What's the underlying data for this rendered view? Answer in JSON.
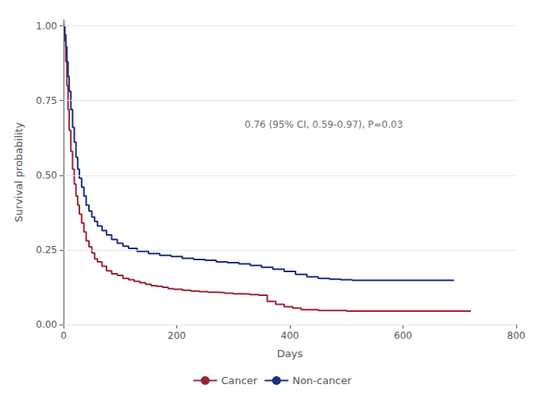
{
  "chart_data": {
    "type": "step",
    "xlabel": "Days",
    "ylabel": "Survival probability",
    "series": [
      {
        "name": "Cancer",
        "color": "#9b2335",
        "x": [
          0,
          2,
          4,
          6,
          8,
          10,
          13,
          16,
          19,
          22,
          25,
          28,
          32,
          36,
          40,
          45,
          50,
          55,
          60,
          68,
          76,
          85,
          95,
          105,
          115,
          125,
          135,
          145,
          155,
          165,
          175,
          185,
          195,
          210,
          225,
          240,
          255,
          270,
          285,
          300,
          315,
          330,
          345,
          360,
          375,
          390,
          405,
          420,
          450,
          500,
          550,
          600,
          660,
          720
        ],
        "values": [
          1.0,
          0.95,
          0.88,
          0.8,
          0.72,
          0.65,
          0.58,
          0.52,
          0.47,
          0.43,
          0.4,
          0.37,
          0.34,
          0.31,
          0.28,
          0.26,
          0.24,
          0.22,
          0.21,
          0.195,
          0.18,
          0.17,
          0.165,
          0.155,
          0.15,
          0.145,
          0.14,
          0.135,
          0.13,
          0.128,
          0.125,
          0.12,
          0.118,
          0.115,
          0.112,
          0.11,
          0.108,
          0.107,
          0.105,
          0.103,
          0.102,
          0.1,
          0.098,
          0.078,
          0.068,
          0.06,
          0.055,
          0.05,
          0.047,
          0.045,
          0.045,
          0.045,
          0.045,
          0.045
        ]
      },
      {
        "name": "Non-cancer",
        "color": "#1f2d7b",
        "x": [
          0,
          2,
          4,
          6,
          8,
          10,
          13,
          16,
          19,
          22,
          25,
          28,
          32,
          36,
          40,
          45,
          50,
          55,
          60,
          68,
          76,
          85,
          95,
          105,
          115,
          130,
          150,
          170,
          190,
          210,
          230,
          250,
          270,
          290,
          310,
          330,
          350,
          370,
          390,
          410,
          430,
          450,
          470,
          490,
          510,
          550,
          600,
          650,
          690
        ],
        "values": [
          1.0,
          0.97,
          0.93,
          0.88,
          0.83,
          0.78,
          0.72,
          0.66,
          0.61,
          0.56,
          0.52,
          0.49,
          0.46,
          0.43,
          0.4,
          0.38,
          0.36,
          0.345,
          0.33,
          0.315,
          0.3,
          0.285,
          0.272,
          0.262,
          0.255,
          0.245,
          0.238,
          0.232,
          0.228,
          0.222,
          0.218,
          0.215,
          0.21,
          0.207,
          0.203,
          0.198,
          0.192,
          0.185,
          0.178,
          0.168,
          0.16,
          0.155,
          0.152,
          0.15,
          0.148,
          0.148,
          0.148,
          0.148,
          0.148
        ]
      }
    ],
    "annotations": [
      {
        "text": "0.76 (95% CI, 0.59-0.97), P=0.03",
        "x": 320,
        "y": 0.67
      }
    ],
    "xlim": [
      0,
      800
    ],
    "ylim": [
      0.0,
      1.02
    ],
    "xticks": [
      0,
      200,
      400,
      600,
      800
    ],
    "yticks": [
      {
        "value": 0.0,
        "label": "0.00"
      },
      {
        "value": 0.25,
        "label": "0.25"
      },
      {
        "value": 0.5,
        "label": "0.50"
      },
      {
        "value": 0.75,
        "label": "0.75"
      },
      {
        "value": 1.0,
        "label": "1.00"
      }
    ],
    "grid": true,
    "legend": "bottom"
  }
}
